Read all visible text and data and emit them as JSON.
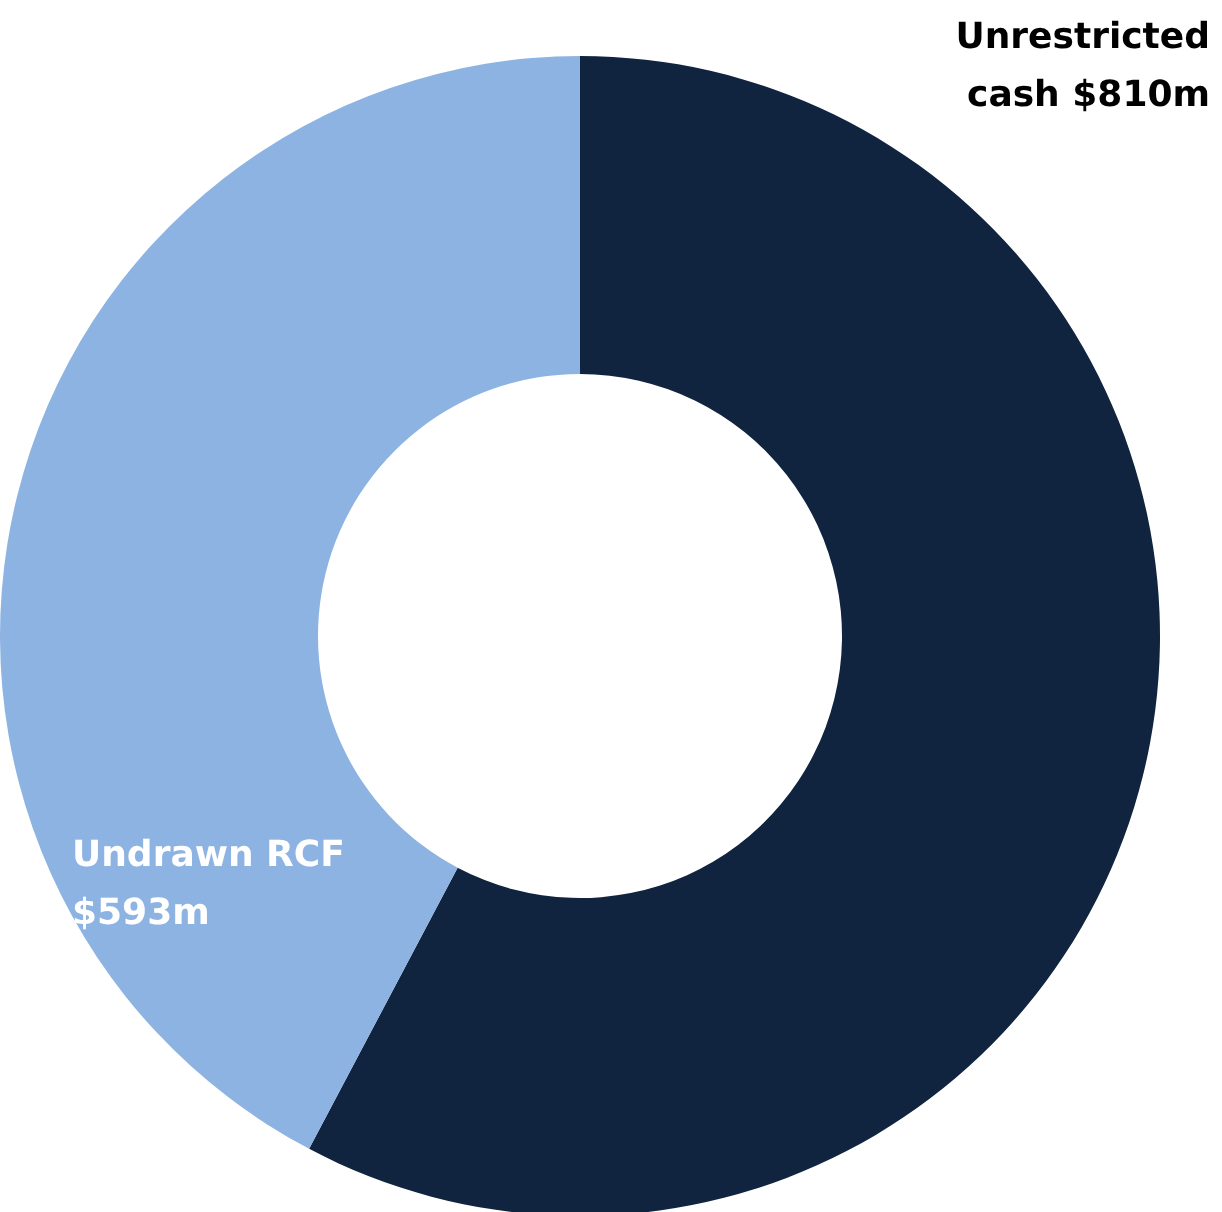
{
  "chart_data": {
    "type": "donut",
    "categories": [
      "Unrestricted cash",
      "Undrawn RCF"
    ],
    "values": [
      810,
      593
    ],
    "colors": [
      "#10233f",
      "#8db3e2"
    ],
    "value_labels": [
      "$810m",
      "$593m"
    ]
  }
}
